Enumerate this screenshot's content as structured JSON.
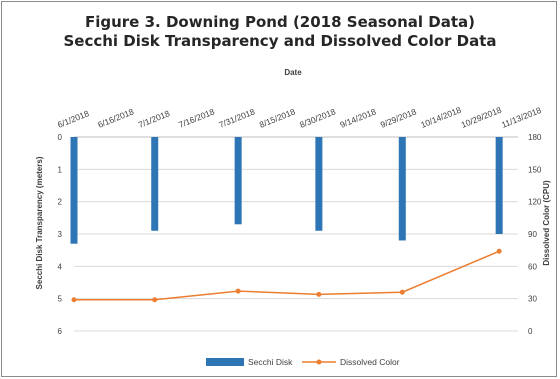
{
  "chart_data": {
    "type": "bar",
    "title": "Figure 3. Downing Pond (2018 Seasonal Data)",
    "subtitle": "Secchi Disk Transparency and Dissolved Color Data",
    "xlabel": "Date",
    "ylabel": "Secchi Disk Transparency (meters)",
    "y2label": "Dissolved Color (CPU)",
    "x_axis_position": "top",
    "y_inverted": true,
    "ylim": [
      0,
      6
    ],
    "y2lim": [
      0,
      180
    ],
    "xlim": [
      "2018-06-01",
      "2018-11-13"
    ],
    "x_ticks": [
      "6/1/2018",
      "6/16/2018",
      "7/1/2018",
      "7/16/2018",
      "7/31/2018",
      "8/15/2018",
      "8/30/2018",
      "9/14/2018",
      "9/29/2018",
      "10/14/2018",
      "10/29/2018",
      "11/13/2018"
    ],
    "y_ticks": [
      "0",
      "1",
      "2",
      "3",
      "4",
      "5",
      "6"
    ],
    "y2_ticks": [
      "180",
      "150",
      "120",
      "90",
      "60",
      "30",
      "0"
    ],
    "legend_position": "bottom",
    "grid": "horizontal",
    "series": [
      {
        "name": "Secchi Disk",
        "type": "bar",
        "axis": "left",
        "color": "#2e75b6",
        "x": [
          "2018-06-01",
          "2018-07-01",
          "2018-08-01",
          "2018-08-31",
          "2018-10-01",
          "2018-11-06"
        ],
        "values": [
          3.3,
          2.9,
          2.7,
          2.9,
          3.2,
          3.0
        ]
      },
      {
        "name": "Dissolved Color",
        "type": "line",
        "axis": "right",
        "color": "#ed7d31",
        "x": [
          "2018-06-01",
          "2018-07-01",
          "2018-08-01",
          "2018-08-31",
          "2018-10-01",
          "2018-11-06"
        ],
        "values": [
          29,
          29,
          37,
          34,
          36,
          74
        ]
      }
    ]
  }
}
